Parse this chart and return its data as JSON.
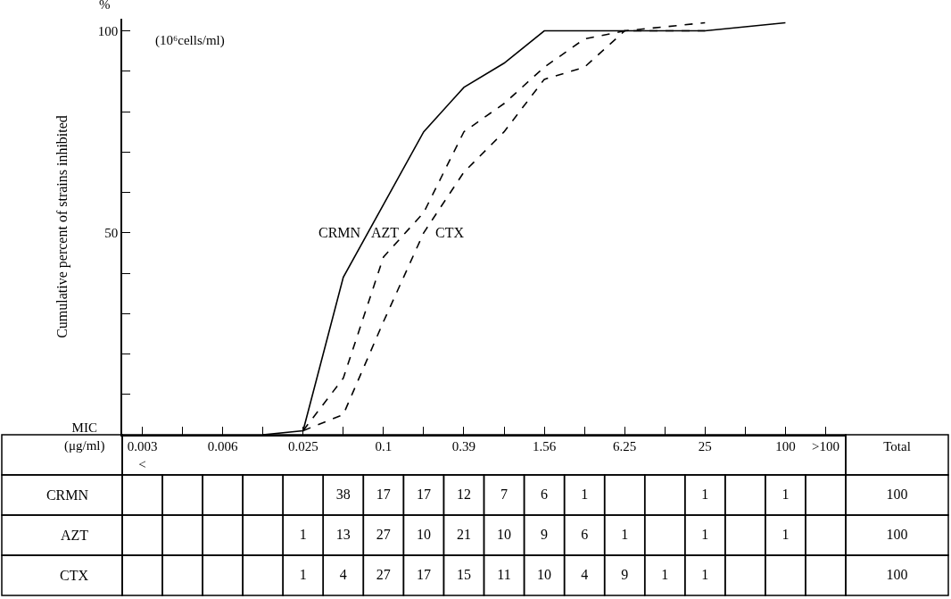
{
  "chart_data": [
    {
      "type": "line",
      "ylabel": "Cumulative percent of strains inhibited",
      "annotations": [
        "(10⁶cells/ml)",
        "%"
      ],
      "categories": [
        null,
        null,
        null,
        null,
        null,
        null,
        null,
        null,
        null,
        null,
        null,
        null,
        null,
        null,
        null,
        null,
        null,
        null
      ],
      "series": [
        {
          "name": "CRMN",
          "color": "#000000",
          "line_style": "solid",
          "values": [
            null,
            null,
            null,
            0,
            1,
            39,
            57,
            75,
            86,
            92,
            100,
            100,
            100,
            100,
            100,
            101,
            102,
            null
          ]
        },
        {
          "name": "AZT",
          "color": "#000000",
          "line_style": "dashed",
          "values": [
            null,
            null,
            null,
            null,
            1,
            14,
            44,
            55,
            75,
            82,
            91,
            98,
            100,
            100,
            100,
            null,
            null,
            null
          ]
        },
        {
          "name": "CTX",
          "color": "#000000",
          "line_style": "dashed",
          "values": [
            null,
            null,
            null,
            null,
            1,
            5,
            28,
            50,
            65,
            75,
            88,
            91,
            100,
            101,
            102,
            null,
            null,
            null
          ]
        }
      ],
      "ylim": [
        0,
        103
      ],
      "yticks": [
        {
          "value": 10,
          "label": null
        },
        {
          "value": 20,
          "label": null
        },
        {
          "value": 30,
          "label": null
        },
        {
          "value": 40,
          "label": null
        },
        50,
        {
          "value": 60,
          "label": null
        },
        {
          "value": 70,
          "label": null
        },
        {
          "value": 80,
          "label": null
        },
        {
          "value": 90,
          "label": null
        },
        100
      ],
      "marker": "none"
    },
    {
      "type": "heatmap",
      "xlabel": "MIC (μg/ml)",
      "categories": [
        "0.003\n<",
        null,
        "0.006",
        null,
        "0.025",
        null,
        "0.1",
        null,
        "0.39",
        null,
        "1.56",
        null,
        "6.25",
        null,
        "25",
        null,
        "100",
        ">100",
        "Total"
      ],
      "y_categories": [
        "CRMN",
        "AZT",
        "CTX"
      ],
      "cells": [
        [
          null,
          null,
          null,
          null,
          null,
          38,
          17,
          17,
          12,
          7,
          6,
          1,
          null,
          null,
          1,
          null,
          1,
          null,
          100
        ],
        [
          null,
          null,
          null,
          null,
          1,
          13,
          27,
          10,
          21,
          10,
          9,
          6,
          1,
          null,
          1,
          null,
          1,
          null,
          100
        ],
        [
          null,
          null,
          null,
          null,
          1,
          4,
          27,
          17,
          15,
          11,
          10,
          4,
          9,
          1,
          1,
          null,
          null,
          null,
          100
        ]
      ],
      "data_labels": true
    }
  ]
}
